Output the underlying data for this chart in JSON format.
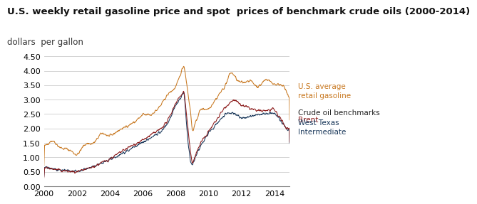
{
  "title": "U.S. weekly retail gasoline price and spot  prices of benchmark crude oils (2000-2014)",
  "subtitle": "dollars  per gallon",
  "background_color": "#ffffff",
  "grid_color": "#cccccc",
  "xlim": [
    2000,
    2014.92
  ],
  "ylim": [
    0.0,
    4.75
  ],
  "yticks": [
    0.0,
    0.5,
    1.0,
    1.5,
    2.0,
    2.5,
    3.0,
    3.5,
    4.0,
    4.5
  ],
  "xticks": [
    2000,
    2002,
    2004,
    2006,
    2008,
    2010,
    2012,
    2014
  ],
  "gasoline_color": "#c87820",
  "brent_color": "#8b1a1a",
  "wti_color": "#1c3a5c",
  "annotation_gasoline_color": "#c87820",
  "annotation_crude_color": "#222222",
  "annotation_brent_color": "#8b1a1a",
  "annotation_wti_color": "#1c3a5c",
  "title_fontsize": 9.5,
  "subtitle_fontsize": 8.5,
  "tick_fontsize": 8,
  "annotation_fontsize": 7.5
}
